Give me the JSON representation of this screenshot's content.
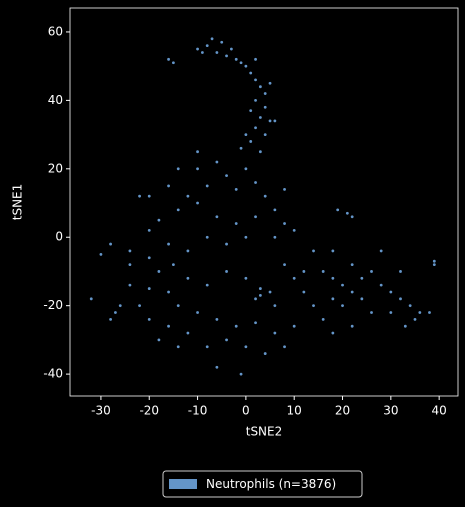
{
  "chart_data": {
    "type": "scatter",
    "xlabel": "tSNE2",
    "ylabel": "tSNE1",
    "xlim": [
      -36.4,
      43.9
    ],
    "ylim": [
      -46.4,
      67
    ],
    "xticks": [
      -30,
      -20,
      -10,
      0,
      10,
      20,
      30,
      40
    ],
    "yticks": [
      -40,
      -20,
      0,
      20,
      40,
      60
    ],
    "legend": "bottom",
    "x": [
      -8,
      -6,
      -4,
      -2,
      0,
      -5,
      -9,
      -3,
      1,
      2,
      3,
      4,
      2,
      4,
      1,
      3,
      5,
      2,
      0,
      4,
      1,
      -1,
      3,
      6,
      -16,
      -15,
      -10,
      -7,
      -1,
      2,
      5,
      -10,
      -8,
      -12,
      -6,
      -4,
      -2,
      0,
      2,
      4,
      6,
      -14,
      -18,
      -20,
      -22,
      -16,
      -10,
      -6,
      -2,
      2,
      8,
      10,
      6,
      0,
      -4,
      -8,
      -12,
      -16,
      -20,
      -24,
      -28,
      -30,
      -10,
      -14,
      8,
      -20,
      -18,
      -15,
      -12,
      -8,
      -4,
      0,
      3,
      3,
      2,
      5,
      6,
      8,
      10,
      12,
      -16,
      -20,
      -24,
      -14,
      -10,
      -6,
      -2,
      2,
      6,
      10,
      -12,
      -8,
      -4,
      0,
      4,
      8,
      -16,
      -20,
      -18,
      -6,
      -1,
      -14,
      -22,
      14,
      -24,
      -26,
      -27,
      -28,
      -32,
      16,
      18,
      20,
      22,
      24,
      18,
      20,
      22,
      26,
      28,
      30,
      32,
      34,
      36,
      38,
      35,
      33,
      30,
      26,
      22,
      18,
      28,
      32,
      14,
      19,
      21,
      22,
      39,
      39,
      16,
      24,
      12,
      18
    ],
    "series": [
      {
        "name": "Neutrophils (n=3876)",
        "color": "#6495c8",
        "values": [
          56,
          54,
          53,
          52,
          50,
          57,
          54,
          55,
          48,
          46,
          44,
          42,
          40,
          38,
          37,
          35,
          34,
          32,
          30,
          30,
          28,
          26,
          25,
          34,
          52,
          51,
          55,
          58,
          51,
          52,
          45,
          20,
          15,
          12,
          22,
          18,
          14,
          20,
          16,
          12,
          8,
          8,
          5,
          2,
          12,
          15,
          10,
          6,
          4,
          6,
          4,
          2,
          0,
          0,
          -2,
          0,
          -4,
          -2,
          -6,
          -4,
          -2,
          -5,
          25,
          20,
          14,
          12,
          -10,
          -8,
          -12,
          -14,
          -10,
          -12,
          -15,
          -17,
          -18,
          -16,
          -20,
          -8,
          -12,
          -10,
          -16,
          -15,
          -14,
          -20,
          -22,
          -24,
          -26,
          -25,
          -28,
          -26,
          -28,
          -32,
          -30,
          -32,
          -34,
          -32,
          -26,
          -24,
          -30,
          -38,
          -40,
          -32,
          -20,
          -20,
          -8,
          -20,
          -22,
          -24,
          -18,
          -10,
          -12,
          -14,
          -16,
          -18,
          -18,
          -20,
          -8,
          -10,
          -14,
          -16,
          -18,
          -20,
          -22,
          -22,
          -24,
          -26,
          -22,
          -22,
          -26,
          -28,
          -4,
          -10,
          -4,
          8,
          7,
          6,
          -7,
          -8,
          -24,
          -12,
          -16,
          -4
        ]
      }
    ]
  }
}
